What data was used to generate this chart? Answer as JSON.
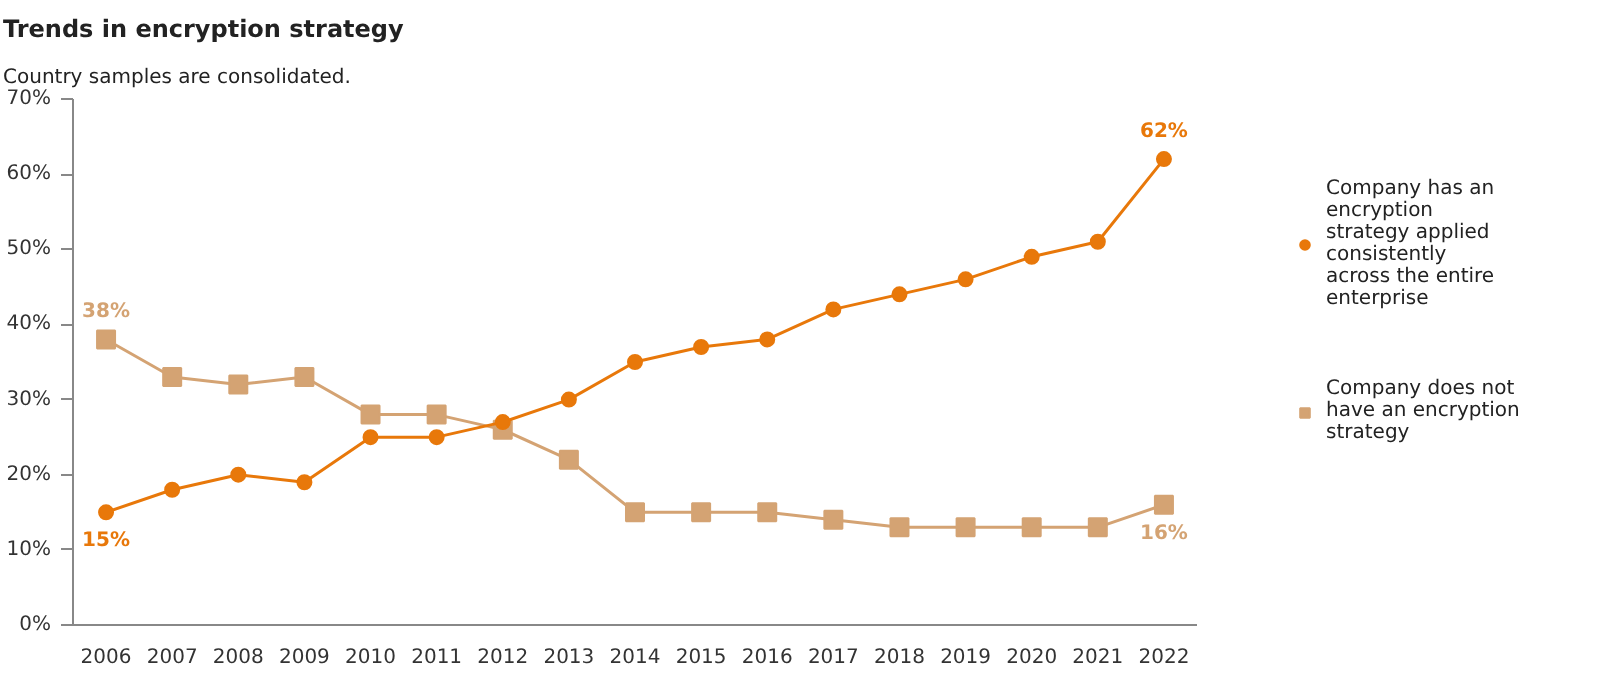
{
  "chart_data": {
    "type": "line",
    "title": "Trends in encryption strategy",
    "subtitle": "Country samples are consolidated.",
    "categories": [
      "2006",
      "2007",
      "2008",
      "2009",
      "2010",
      "2011",
      "2012",
      "2013",
      "2014",
      "2015",
      "2016",
      "2017",
      "2018",
      "2019",
      "2020",
      "2021",
      "2022"
    ],
    "series": [
      {
        "name": "Company has an encryption strategy applied consistently across the entire enterprise",
        "color": "#e8780a",
        "marker": "circle",
        "values": [
          15,
          18,
          20,
          19,
          25,
          25,
          27,
          30,
          35,
          37,
          38,
          42,
          44,
          46,
          49,
          51,
          62
        ],
        "value_labels": [
          "15%",
          null,
          null,
          null,
          null,
          null,
          null,
          null,
          null,
          null,
          null,
          null,
          null,
          null,
          null,
          null,
          "62%"
        ]
      },
      {
        "name": "Company does not have an encryption strategy",
        "color": "#d4a373",
        "marker": "square",
        "values": [
          38,
          33,
          32,
          33,
          28,
          28,
          26,
          22,
          15,
          15,
          15,
          14,
          13,
          13,
          13,
          13,
          16
        ],
        "value_labels": [
          "38%",
          null,
          null,
          null,
          null,
          null,
          null,
          null,
          null,
          null,
          null,
          null,
          null,
          null,
          null,
          null,
          "16%"
        ]
      }
    ],
    "ylim": [
      0,
      70
    ],
    "yticks": [
      {
        "value": 0,
        "label": "0%"
      },
      {
        "value": 10,
        "label": "10%"
      },
      {
        "value": 20,
        "label": "20%"
      },
      {
        "value": 30,
        "label": "30%"
      },
      {
        "value": 40,
        "label": "40%"
      },
      {
        "value": 50,
        "label": "50%"
      },
      {
        "value": 60,
        "label": "60%"
      },
      {
        "value": 70,
        "label": "70%"
      }
    ],
    "grid": false,
    "legend": "right"
  }
}
